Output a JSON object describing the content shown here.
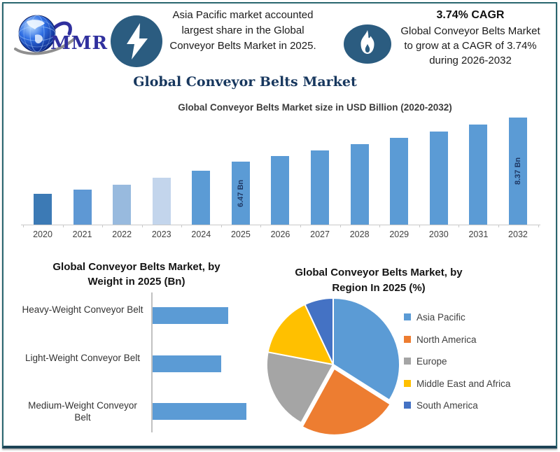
{
  "frame": {
    "border_color": "#2a666f",
    "bottom_border_color": "#1d4356"
  },
  "header": {
    "logo": {
      "text": "MMR",
      "icon": "globe-icon",
      "text_color": "#30309e"
    },
    "badge_color": "#2b5c80",
    "insight": {
      "icon": "lightning-bolt-icon",
      "lines": [
        "Asia Pacific market accounted",
        "largest share in the Global",
        "Conveyor Belts Market in 2025."
      ]
    },
    "cagr": {
      "icon": "flame-icon",
      "heading": "3.74% CAGR",
      "lines": [
        "Global Conveyor Belts Market",
        "to grow at a CAGR of 3.74%",
        "during 2026-2032"
      ]
    }
  },
  "page_title": "Global Conveyor Belts Market",
  "chart_data": [
    {
      "type": "bar",
      "title": "Global Conveyor Belts Market size in USD Billion (2020-2032)",
      "categories": [
        "2020",
        "2021",
        "2022",
        "2023",
        "2024",
        "2025",
        "2026",
        "2027",
        "2028",
        "2029",
        "2030",
        "2031",
        "2032"
      ],
      "values": [
        5.1,
        5.3,
        5.5,
        5.8,
        6.1,
        6.47,
        6.71,
        6.96,
        7.22,
        7.49,
        7.77,
        8.06,
        8.37
      ],
      "unit": "USD Billion",
      "data_labels": [
        {
          "category": "2025",
          "text": "6.47 Bn"
        },
        {
          "category": "2032",
          "text": "8.37 Bn"
        }
      ],
      "colors": {
        "2020": "#3c7ab5",
        "2021": "#5e98d4",
        "2022": "#98bade",
        "2023": "#c3d5ec",
        "default": "#5b9bd5"
      },
      "ylim": [
        3.8,
        8.6
      ],
      "gridlines": false,
      "legend_position": "none"
    },
    {
      "type": "bar",
      "orientation": "horizontal",
      "title": "Global Conveyor Belts Market, by Weight in 2025 (Bn)",
      "title_lines": [
        "Global Conveyor Belts Market, by",
        "Weight in 2025 (Bn)"
      ],
      "categories": [
        "Heavy-Weight Conveyor Belt",
        "Light-Weight Conveyor Belt",
        "Medium-Weight Conveyor Belt"
      ],
      "values": [
        2.1,
        1.9,
        2.6
      ],
      "bar_color": "#5b9bd5",
      "xlim": [
        0,
        2.9
      ],
      "gridlines": false,
      "legend_position": "none"
    },
    {
      "type": "pie",
      "title": "Global Conveyor Belts Market, by Region In 2025 (%)",
      "title_lines": [
        "Global Conveyor Belts Market, by",
        "Region In 2025 (%)"
      ],
      "slices": [
        {
          "label": "Asia Pacific",
          "value": 34,
          "color": "#5b9bd5"
        },
        {
          "label": "North America",
          "value": 24,
          "color": "#ed7d31",
          "exploded": true
        },
        {
          "label": "Europe",
          "value": 20,
          "color": "#a5a5a5"
        },
        {
          "label": "Middle East and Africa",
          "value": 15,
          "color": "#ffc000"
        },
        {
          "label": "South America",
          "value": 7,
          "color": "#4472c4"
        }
      ],
      "start_angle_deg": 0,
      "legend_position": "right"
    }
  ]
}
